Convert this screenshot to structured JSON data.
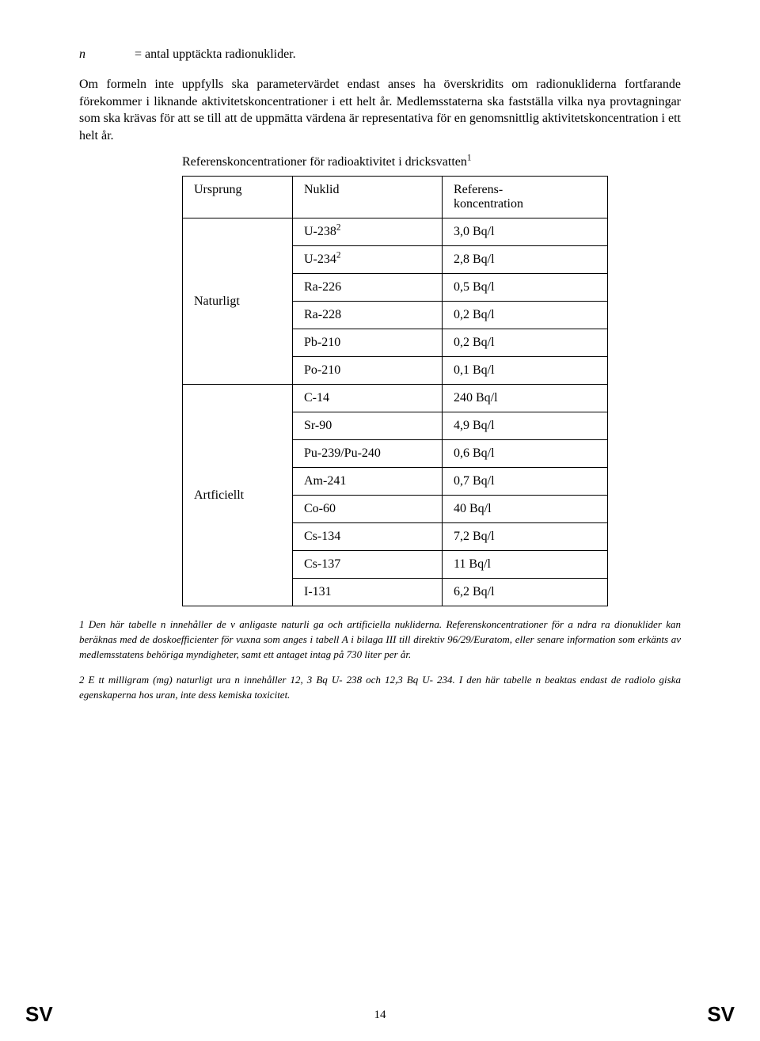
{
  "definition": {
    "symbol": "n",
    "text": "= antal upptäckta radionuklider."
  },
  "para1": "Om formeln inte uppfylls ska parametervärdet endast anses ha överskridits om radionukliderna fortfarande förekommer i liknande aktivitetskoncentrationer i ett helt år. Medlemsstaterna ska fastställa vilka nya provtagningar som ska krävas för att se till att de uppmätta värdena är representativa för en genomsnittlig aktivitetskoncentration i ett helt år.",
  "table": {
    "caption": "Referenskoncentrationer för radioaktivitet i dricksvatten",
    "caption_sup": "1",
    "headers": {
      "origin": "Ursprung",
      "nuklid": "Nuklid",
      "ref": "Referens-koncentration"
    },
    "groups": [
      {
        "origin": "Naturligt",
        "rows": [
          {
            "nuklid": "U-238",
            "nuklid_sup": "2",
            "ref": "3,0 Bq/l"
          },
          {
            "nuklid": "U-234",
            "nuklid_sup": "2",
            "ref": "2,8 Bq/l"
          },
          {
            "nuklid": "Ra-226",
            "ref": "0,5 Bq/l"
          },
          {
            "nuklid": "Ra-228",
            "ref": "0,2 Bq/l"
          },
          {
            "nuklid": "Pb-210",
            "ref": "0,2 Bq/l"
          },
          {
            "nuklid": "Po-210",
            "ref": "0,1 Bq/l"
          }
        ]
      },
      {
        "origin": "Artficiellt",
        "rows": [
          {
            "nuklid": "C-14",
            "ref": "240 Bq/l"
          },
          {
            "nuklid": "Sr-90",
            "ref": "4,9 Bq/l"
          },
          {
            "nuklid": "Pu-239/Pu-240",
            "ref": "0,6 Bq/l"
          },
          {
            "nuklid": "Am-241",
            "ref": "0,7 Bq/l"
          },
          {
            "nuklid": "Co-60",
            "ref": "40 Bq/l"
          },
          {
            "nuklid": "Cs-134",
            "ref": "7,2 Bq/l"
          },
          {
            "nuklid": "Cs-137",
            "ref": "11 Bq/l"
          },
          {
            "nuklid": "I-131",
            "ref": "6,2 Bq/l"
          }
        ]
      }
    ]
  },
  "footnote1": "1 Den här tabelle n innehåller de v anligaste naturli ga och artificiella nukliderna.  Referenskoncentrationer för a ndra ra dionuklider kan beräknas med de doskoefficienter för vuxna som anges i tabell A i bilaga III till direktiv 96/29/Euratom, eller senare information som erkänts av medlemsstatens behöriga myndigheter, samt ett antaget intag på 730 liter per år.",
  "footnote2": "2 E tt milligram  (mg) naturligt ura n innehåller 12, 3 Bq U- 238 och  12,3 Bq U- 234. I  den här tabelle  n beaktas endast de radiolo  giska egenskaperna hos uran, inte dess kemiska toxicitet.",
  "footer": {
    "left": "SV",
    "right": "SV",
    "pageno": "14"
  }
}
